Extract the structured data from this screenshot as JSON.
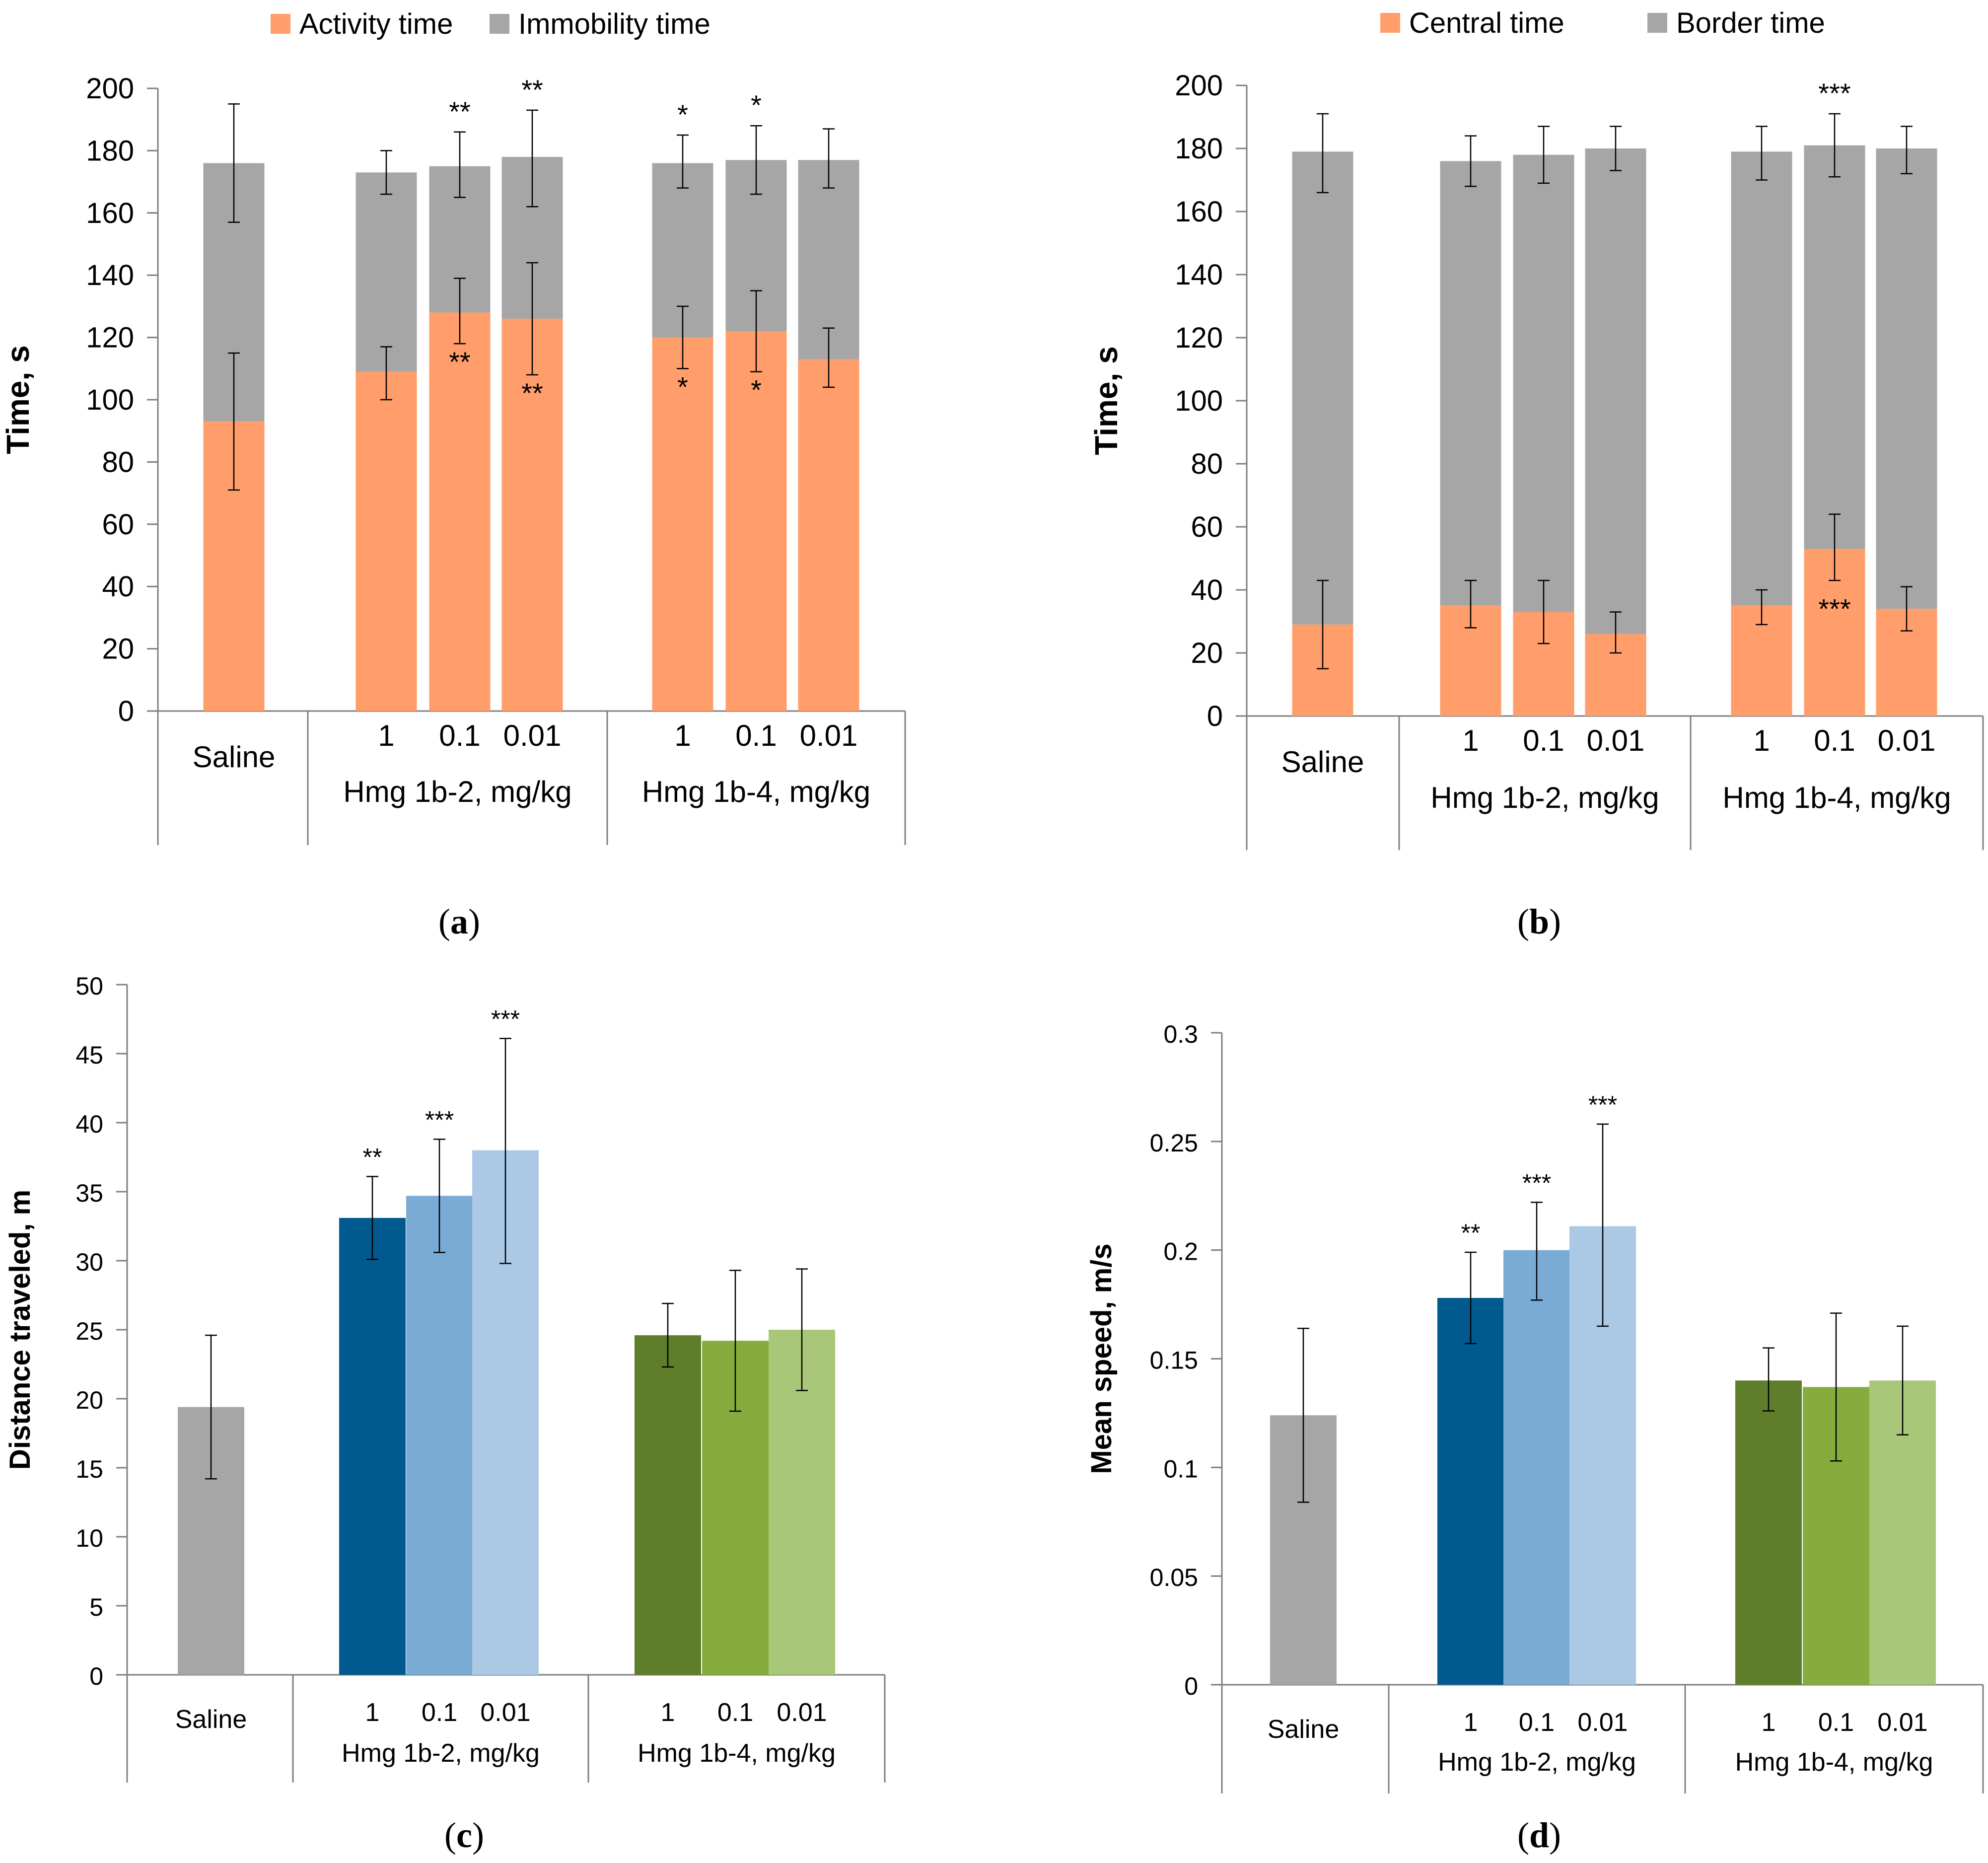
{
  "chart_data": [
    {
      "id": "a",
      "type": "bar",
      "stacked": true,
      "panel_label": "a",
      "ylabel": "Time, s",
      "ylim": [
        0,
        200
      ],
      "yticks": [
        0,
        20,
        40,
        60,
        80,
        100,
        120,
        140,
        160,
        180,
        200
      ],
      "ytick_labels": [
        "0",
        "20",
        "40",
        "60",
        "80",
        "100",
        "120",
        "140",
        "160",
        "180",
        "200"
      ],
      "groups": [
        {
          "label": "",
          "bars": [
            "Saline"
          ]
        },
        {
          "label": "Hmg 1b-2, mg/kg",
          "bars": [
            "1",
            "0.1",
            "0.01"
          ]
        },
        {
          "label": "Hmg 1b-4, mg/kg",
          "bars": [
            "1",
            "0.1",
            "0.01"
          ]
        }
      ],
      "categories": [
        "Saline",
        "1",
        "0.1",
        "0.01",
        "1",
        "0.1",
        "0.01"
      ],
      "series": [
        {
          "name": "Activity time",
          "color": "#FF9E6A",
          "values": [
            93,
            109,
            128,
            126,
            120,
            122,
            113
          ],
          "err_lo": [
            71,
            100,
            118,
            108,
            110,
            109,
            104
          ],
          "err_hi": [
            115,
            117,
            139,
            144,
            130,
            135,
            123
          ],
          "sig": [
            "",
            "",
            "**",
            "**",
            "*",
            "*",
            ""
          ]
        },
        {
          "name": "Immobility time",
          "color": "#A6A6A6",
          "values": [
            83,
            64,
            47,
            52,
            56,
            55,
            64
          ],
          "totals": [
            176,
            173,
            175,
            178,
            176,
            177,
            177
          ],
          "err_lo": [
            157,
            166,
            165,
            162,
            168,
            166,
            168
          ],
          "err_hi": [
            195,
            180,
            186,
            193,
            185,
            188,
            187
          ],
          "sig": [
            "",
            "",
            "**",
            "**",
            "*",
            "*",
            ""
          ]
        }
      ]
    },
    {
      "id": "b",
      "type": "bar",
      "stacked": true,
      "panel_label": "b",
      "ylabel": "Time, s",
      "ylim": [
        0,
        200
      ],
      "yticks": [
        0,
        20,
        40,
        60,
        80,
        100,
        120,
        140,
        160,
        180,
        200
      ],
      "ytick_labels": [
        "0",
        "20",
        "40",
        "60",
        "80",
        "100",
        "120",
        "140",
        "160",
        "180",
        "200"
      ],
      "groups": [
        {
          "label": "",
          "bars": [
            "Saline"
          ]
        },
        {
          "label": "Hmg 1b-2, mg/kg",
          "bars": [
            "1",
            "0.1",
            "0.01"
          ]
        },
        {
          "label": "Hmg 1b-4, mg/kg",
          "bars": [
            "1",
            "0.1",
            "0.01"
          ]
        }
      ],
      "categories": [
        "Saline",
        "1",
        "0.1",
        "0.01",
        "1",
        "0.1",
        "0.01"
      ],
      "series": [
        {
          "name": "Central  time",
          "color": "#FF9E6A",
          "values": [
            29,
            35,
            33,
            26,
            35,
            53,
            34
          ],
          "err_lo": [
            15,
            28,
            23,
            20,
            29,
            43,
            27
          ],
          "err_hi": [
            43,
            43,
            43,
            33,
            40,
            64,
            41
          ],
          "sig": [
            "",
            "",
            "",
            "",
            "",
            "***",
            ""
          ]
        },
        {
          "name": "Border time",
          "color": "#A6A6A6",
          "values": [
            150,
            141,
            145,
            154,
            144,
            128,
            146
          ],
          "totals": [
            179,
            176,
            178,
            180,
            179,
            181,
            180
          ],
          "err_lo": [
            166,
            168,
            169,
            173,
            170,
            171,
            172
          ],
          "err_hi": [
            191,
            184,
            187,
            187,
            187,
            191,
            187
          ],
          "sig": [
            "",
            "",
            "",
            "",
            "",
            "***",
            ""
          ]
        }
      ]
    },
    {
      "id": "c",
      "type": "bar",
      "stacked": false,
      "panel_label": "c",
      "ylabel": "Distance traveled, m",
      "ylim": [
        0,
        50
      ],
      "yticks": [
        0,
        5,
        10,
        15,
        20,
        25,
        30,
        35,
        40,
        45,
        50
      ],
      "ytick_labels": [
        "0",
        "5",
        "10",
        "15",
        "20",
        "25",
        "30",
        "35",
        "40",
        "45",
        "50"
      ],
      "groups": [
        {
          "label": "",
          "bars": [
            "Saline"
          ]
        },
        {
          "label": "Hmg 1b-2, mg/kg",
          "bars": [
            "1",
            "0.1",
            "0.01"
          ]
        },
        {
          "label": "Hmg 1b-4, mg/kg",
          "bars": [
            "1",
            "0.1",
            "0.01"
          ]
        }
      ],
      "categories": [
        "Saline",
        "1",
        "0.1",
        "0.01",
        "1",
        "0.1",
        "0.01"
      ],
      "values": [
        19.4,
        33.1,
        34.7,
        38.0,
        24.6,
        24.2,
        25.0
      ],
      "err_lo": [
        14.2,
        30.1,
        30.6,
        29.8,
        22.3,
        19.1,
        20.6
      ],
      "err_hi": [
        24.6,
        36.1,
        38.8,
        46.1,
        26.9,
        29.3,
        29.4
      ],
      "colors": [
        "#A6A6A6",
        "#005A8F",
        "#7AABD4",
        "#ABC8E4",
        "#5E7E2B",
        "#85AC3C",
        "#A8C778"
      ],
      "sig": [
        "",
        "**",
        "***",
        "***",
        "",
        "",
        ""
      ]
    },
    {
      "id": "d",
      "type": "bar",
      "stacked": false,
      "panel_label": "d",
      "ylabel": "Mean speed, m/s",
      "ylim": [
        0,
        0.3
      ],
      "yticks": [
        0,
        0.05,
        0.1,
        0.15,
        0.2,
        0.25,
        0.3
      ],
      "ytick_labels": [
        "0",
        "0.05",
        "0.1",
        "0.15",
        "0.2",
        "0.25",
        "0.3"
      ],
      "groups": [
        {
          "label": "",
          "bars": [
            "Saline"
          ]
        },
        {
          "label": "Hmg 1b-2, mg/kg",
          "bars": [
            "1",
            "0.1",
            "0.01"
          ]
        },
        {
          "label": "Hmg 1b-4, mg/kg",
          "bars": [
            "1",
            "0.1",
            "0.01"
          ]
        }
      ],
      "categories": [
        "Saline",
        "1",
        "0.1",
        "0.01",
        "1",
        "0.1",
        "0.01"
      ],
      "values": [
        0.124,
        0.178,
        0.2,
        0.211,
        0.14,
        0.137,
        0.14
      ],
      "err_lo": [
        0.084,
        0.157,
        0.177,
        0.165,
        0.126,
        0.103,
        0.115
      ],
      "err_hi": [
        0.164,
        0.199,
        0.222,
        0.258,
        0.155,
        0.171,
        0.165
      ],
      "colors": [
        "#A6A6A6",
        "#005A8F",
        "#7AABD4",
        "#ABC8E4",
        "#5E7E2B",
        "#85AC3C",
        "#A8C778"
      ],
      "sig": [
        "",
        "**",
        "***",
        "***",
        "",
        "",
        ""
      ]
    }
  ]
}
